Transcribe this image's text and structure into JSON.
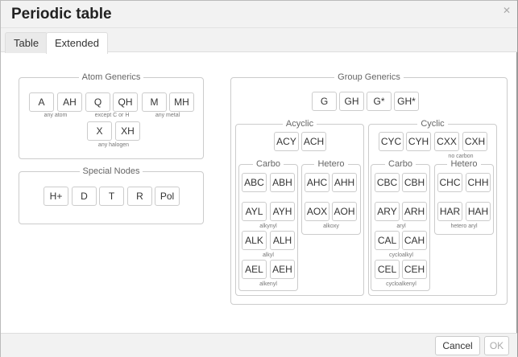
{
  "title": "Periodic table",
  "close_icon": "close-icon",
  "tabs": [
    {
      "label": "Table"
    },
    {
      "label": "Extended",
      "active": true
    }
  ],
  "atom_generics": {
    "legend": "Atom Generics",
    "buttons": [
      "A",
      "AH",
      "Q",
      "QH",
      "M",
      "MH",
      "X",
      "XH"
    ],
    "notes": [
      "any atom",
      "except C or H",
      "any metal",
      "any halogen"
    ]
  },
  "special_nodes": {
    "legend": "Special Nodes",
    "buttons": [
      "H+",
      "D",
      "T",
      "R",
      "Pol"
    ]
  },
  "group_generics": {
    "legend": "Group Generics",
    "buttons": [
      "G",
      "GH",
      "G*",
      "GH*"
    ],
    "acyclic": {
      "legend": "Acyclic",
      "buttons": [
        "ACY",
        "ACH"
      ],
      "carbo": {
        "legend": "Carbo",
        "buttons": [
          "ABC",
          "ABH",
          "AYL",
          "AYH",
          "ALK",
          "ALH",
          "AEL",
          "AEH"
        ],
        "notes": [
          "alkynyl",
          "alkyl",
          "alkenyl"
        ]
      },
      "hetero": {
        "legend": "Hetero",
        "buttons": [
          "AHC",
          "AHH",
          "AOX",
          "AOH"
        ],
        "notes": [
          "alkoxy"
        ]
      }
    },
    "cyclic": {
      "legend": "Cyclic",
      "buttons": [
        "CYC",
        "CYH",
        "CXX",
        "CXH"
      ],
      "notes": [
        "no carbon"
      ],
      "carbo": {
        "legend": "Carbo",
        "buttons": [
          "CBC",
          "CBH",
          "ARY",
          "ARH",
          "CAL",
          "CAH",
          "CEL",
          "CEH"
        ],
        "notes": [
          "aryl",
          "cycloalkyl",
          "cycloalkenyl"
        ]
      },
      "hetero": {
        "legend": "Hetero",
        "buttons": [
          "CHC",
          "CHH",
          "HAR",
          "HAH"
        ],
        "notes": [
          "hetero aryl"
        ]
      }
    }
  },
  "footer": {
    "cancel": "Cancel",
    "ok": "OK"
  }
}
